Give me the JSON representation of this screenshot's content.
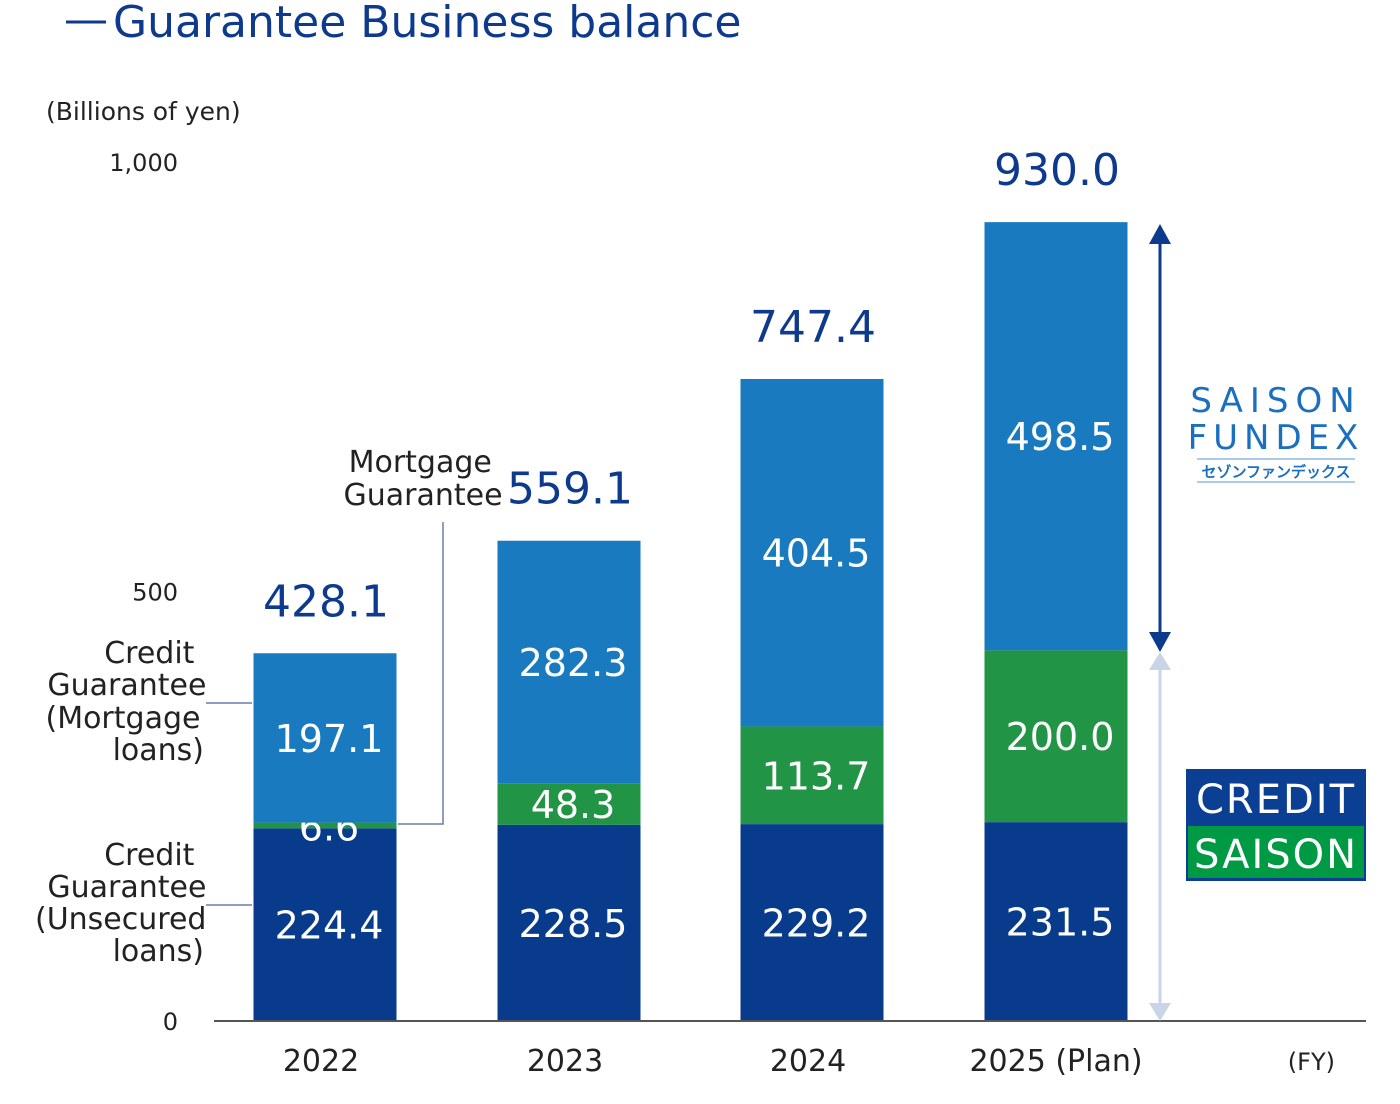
{
  "title": "Guarantee Business balance",
  "chart_data": {
    "type": "bar",
    "stacked": true,
    "title": "Guarantee Business balance",
    "ylabel": "(Billions of yen)",
    "xlabel": "(FY)",
    "ylim": [
      0,
      1000
    ],
    "yticks": [
      "0",
      "500",
      "1,000"
    ],
    "ytick_values": [
      0,
      500,
      1000
    ],
    "grid": false,
    "categories": [
      "2022",
      "2023",
      "2024",
      "2025 (Plan)"
    ],
    "series": [
      {
        "name": "Credit Guarantee (Unsecured loans)",
        "color": "#083b8c",
        "values": [
          224.4,
          228.5,
          229.2,
          231.5
        ],
        "labels": [
          "224.4",
          "228.5",
          "229.2",
          "231.5"
        ]
      },
      {
        "name": "Mortgage Guarantee",
        "color": "#229445",
        "values": [
          6.6,
          48.3,
          113.7,
          200.0
        ],
        "labels": [
          "6.6",
          "48.3",
          "113.7",
          "200.0"
        ]
      },
      {
        "name": "Credit Guarantee (Mortgage loans)",
        "color": "#1a7abf",
        "values": [
          197.1,
          282.3,
          404.5,
          498.5
        ],
        "labels": [
          "197.1",
          "282.3",
          "404.5",
          "498.5"
        ]
      }
    ],
    "totals": [
      428.1,
      559.1,
      747.4,
      930.0
    ],
    "total_labels": [
      "428.1",
      "559.1",
      "747.4",
      "930.0"
    ],
    "annotations": {
      "mortgage_loans": [
        "Credit",
        "Guarantee",
        "(Mortgage",
        "loans)"
      ],
      "unsecured_loans": [
        "Credit",
        "Guarantee",
        "(Unsecured",
        "loans)"
      ],
      "mortgage_guarantee": [
        "Mortgage",
        "Guarantee"
      ]
    }
  },
  "logos": {
    "saison_fundex": {
      "line1": "SAISON",
      "line2": "FUNDEX",
      "kana": "セゾンファンデックス",
      "color": "#1a6fbf"
    },
    "credit_saison": {
      "line1": "CREDIT",
      "line2": "SAISON",
      "top_color": "#0a3f94",
      "bottom_color": "#009944"
    }
  }
}
